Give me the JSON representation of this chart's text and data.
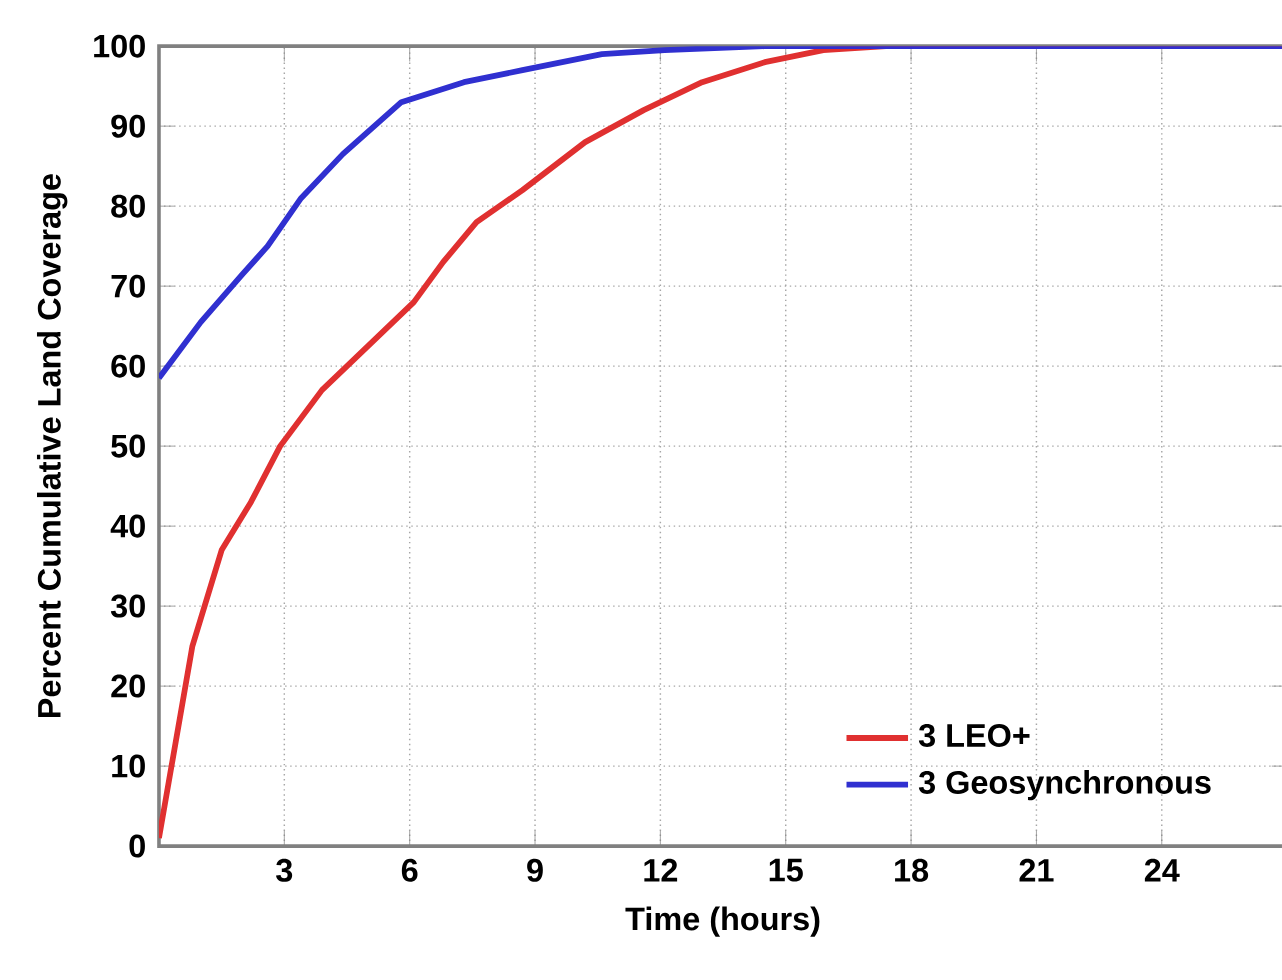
{
  "chart_data": {
    "type": "line",
    "xlabel": "Time (hours)",
    "ylabel": "Percent Cumulative Land Coverage",
    "xlim": [
      0,
      27
    ],
    "xticks": [
      3,
      6,
      9,
      12,
      15,
      18,
      21,
      24
    ],
    "ylim": [
      0,
      100
    ],
    "yticks": [
      0,
      10,
      20,
      30,
      40,
      50,
      60,
      70,
      80,
      90,
      100
    ],
    "grid": true,
    "legend": "bottom right",
    "marker": "none",
    "line_style": "solid",
    "series": [
      {
        "name": "3 LEO+",
        "color": "#e03030",
        "x": [
          0,
          0.3,
          0.8,
          1.5,
          2.2,
          2.9,
          3.9,
          5.1,
          6.1,
          6.8,
          7.6,
          8.7,
          10.2,
          11.6,
          13,
          14.5,
          15.9,
          17.4,
          20.3,
          27
        ],
        "values": [
          1,
          10,
          25,
          37,
          43,
          50,
          57,
          63,
          68,
          73,
          78,
          82,
          88,
          92,
          95.5,
          98,
          99.5,
          100,
          100,
          100
        ]
      },
      {
        "name": "3 Geosynchronous",
        "color": "#3030d0",
        "x": [
          0,
          1,
          2,
          2.6,
          3.4,
          4.4,
          5.8,
          7.3,
          8.7,
          10.6,
          12.1,
          14.5,
          27
        ],
        "values": [
          58.5,
          65.5,
          71.5,
          75,
          81,
          86.5,
          93,
          95.5,
          97,
          99,
          99.5,
          100,
          100
        ]
      }
    ]
  }
}
